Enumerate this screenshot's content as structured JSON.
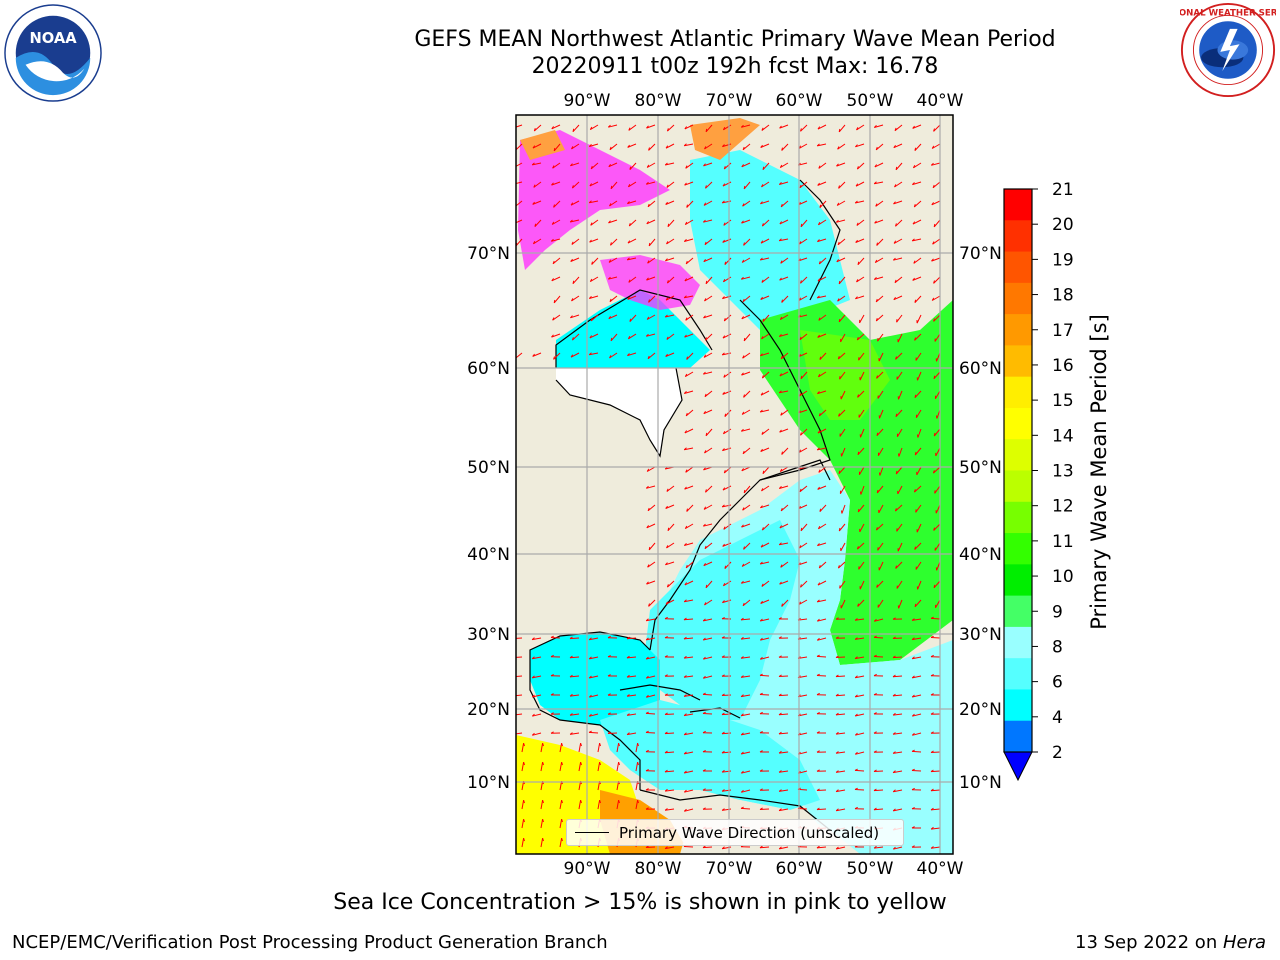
{
  "title": {
    "line1": "GEFS MEAN Northwest Atlantic Primary Wave Mean Period",
    "line2": "20220911 t00z 192h fcst   Max: 16.78"
  },
  "logos": {
    "noaa_text": "NOAA",
    "noaa_ring": "NATIONAL OCEANIC AND ATMOSPHERIC ADMINISTRATION · U.S. DEPARTMENT OF COMMERCE",
    "nws_ring": "NATIONAL WEATHER SERVICE"
  },
  "map": {
    "lon_labels": [
      "90°W",
      "80°W",
      "70°W",
      "60°W",
      "50°W",
      "40°W"
    ],
    "lat_labels": [
      "70°N",
      "60°N",
      "50°N",
      "40°N",
      "30°N",
      "20°N",
      "10°N"
    ],
    "land_color": "#efecdc",
    "ocean_white_note_colors": {
      "cyan": "#00ffff",
      "light_cyan": "#99ffff",
      "green": "#2eff2e",
      "yellow": "#ffff00",
      "orange": "#ffa000",
      "ice_pink": "#ff33ff"
    },
    "arrow_color": "#ff0000"
  },
  "colorbar": {
    "label": "Primary Wave Mean Period [s]",
    "ticks": [
      "21",
      "20",
      "19",
      "18",
      "17",
      "16",
      "15",
      "14",
      "13",
      "12",
      "11",
      "10",
      "9",
      "8",
      "6",
      "4",
      "2"
    ],
    "colors_top_to_bottom": [
      "#ff0000",
      "#ff3000",
      "#ff5500",
      "#ff7800",
      "#ff9900",
      "#ffbb00",
      "#ffee00",
      "#ffff00",
      "#ddff00",
      "#bbff00",
      "#77ff00",
      "#33ff00",
      "#00ee00",
      "#44ff66",
      "#99ffff",
      "#55ffff",
      "#00ffff",
      "#0077ff"
    ],
    "extend_color": "#0000ff"
  },
  "legend": {
    "label": "Primary Wave Direction (unscaled)"
  },
  "footnote": "Sea Ice Concentration > 15% is shown in pink to yellow",
  "credit_left": "NCEP/EMC/Verification Post Processing Product Generation Branch",
  "credit_date": "13 Sep 2022 on ",
  "credit_machine": "Hera"
}
